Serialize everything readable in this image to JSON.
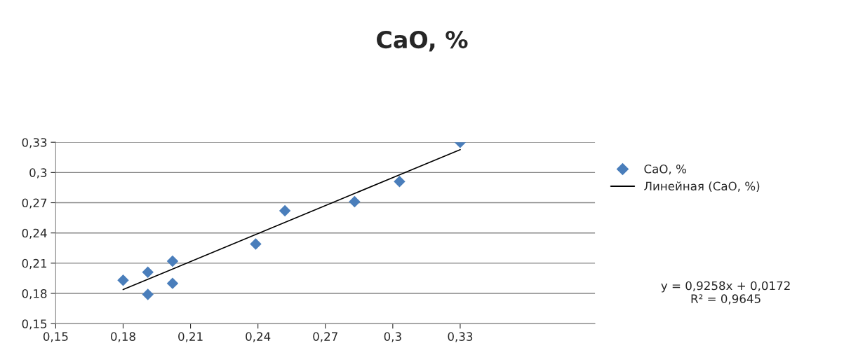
{
  "chart_data": {
    "type": "scatter",
    "title": "CaO, %",
    "series": [
      {
        "name": "CaO, %",
        "color": "#4a7ebb",
        "marker": "diamond",
        "x": [
          0.18,
          0.191,
          0.191,
          0.202,
          0.202,
          0.239,
          0.252,
          0.283,
          0.303,
          0.33
        ],
        "values": [
          0.193,
          0.201,
          0.179,
          0.212,
          0.19,
          0.229,
          0.262,
          0.271,
          0.291,
          0.33
        ]
      },
      {
        "name": "Линейная (CaO, %)",
        "type": "line",
        "color": "#000000",
        "line_style": "solid",
        "x": [
          0.18,
          0.33
        ],
        "values": [
          0.1838,
          0.3227
        ]
      }
    ],
    "annotations": [
      "y = 0,9258x + 0,0172\nR² = 0,9645"
    ],
    "xlim": [
      0.15,
      0.39
    ],
    "xticks": [
      {
        "value": 0.15,
        "label": "0,15"
      },
      {
        "value": 0.18,
        "label": "0,18"
      },
      {
        "value": 0.21,
        "label": "0,21"
      },
      {
        "value": 0.24,
        "label": "0,24"
      },
      {
        "value": 0.27,
        "label": "0,27"
      },
      {
        "value": 0.3,
        "label": "0,3"
      },
      {
        "value": 0.33,
        "label": "0,33"
      }
    ],
    "ylim": [
      0.15,
      0.33
    ],
    "yticks": [
      {
        "value": 0.15,
        "label": "0,15"
      },
      {
        "value": 0.18,
        "label": "0,18"
      },
      {
        "value": 0.21,
        "label": "0,21"
      },
      {
        "value": 0.24,
        "label": "0,24"
      },
      {
        "value": 0.27,
        "label": "0,27"
      },
      {
        "value": 0.3,
        "label": "0,3"
      },
      {
        "value": 0.33,
        "label": "0,33"
      }
    ],
    "grid": "y",
    "legend": "right"
  }
}
